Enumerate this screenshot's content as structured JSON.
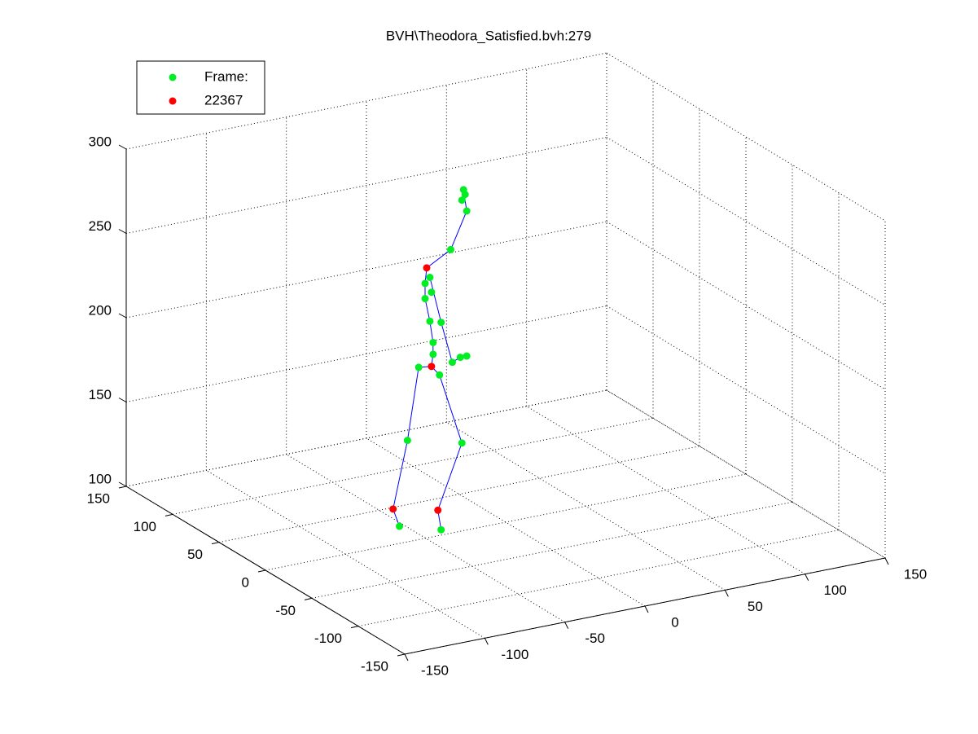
{
  "chart_data": {
    "type": "scatter3d",
    "title": "BVH\\Theodora_Satisfied.bvh:279",
    "xlim": [
      -150,
      150
    ],
    "ylim": [
      -150,
      150
    ],
    "zlim": [
      100,
      300
    ],
    "xticks": [
      -150,
      -100,
      -50,
      0,
      50,
      100,
      150
    ],
    "yticks": [
      -150,
      -100,
      -50,
      0,
      50,
      100,
      150
    ],
    "zticks": [
      100,
      150,
      200,
      250,
      300
    ],
    "grid": true,
    "legend": "upper left",
    "series": [
      {
        "name": "Frame:",
        "color": "#00ee22",
        "mode": "markers",
        "x": [
          -13,
          -12,
          -14,
          -11,
          -21,
          -34,
          -37,
          -33,
          -37,
          -34,
          -27,
          -32,
          -32,
          -41,
          -28,
          -20,
          -15,
          -11,
          -48,
          -14,
          -53,
          -27
        ],
        "y": [
          23,
          23,
          23,
          23,
          23,
          23,
          23,
          23,
          23,
          23,
          23,
          23,
          23,
          23,
          23,
          23,
          23,
          23,
          23,
          23,
          23,
          23
        ],
        "z": [
          292,
          289,
          286,
          279,
          258,
          244,
          241,
          235,
          232,
          218,
          216,
          205,
          198,
          192,
          185,
          191,
          193,
          193,
          150,
          142,
          100,
          93
        ]
      },
      {
        "name": "22367",
        "color": "#ff0000",
        "mode": "markers",
        "x": [
          -36,
          -33,
          -57,
          -29
        ],
        "y": [
          23,
          23,
          23,
          23
        ],
        "z": [
          250,
          191,
          111,
          105
        ]
      },
      {
        "color": "#0000ff",
        "mode": "line",
        "x": [
          -13,
          -11,
          -21,
          -36,
          -37,
          -37,
          -34,
          -32,
          -32,
          -33,
          null,
          -33,
          -41,
          -48,
          -57,
          -53,
          null,
          -33,
          -28,
          -14,
          -29,
          -27,
          null,
          -34,
          -27,
          -20,
          -15
        ],
        "y": [
          23,
          23,
          23,
          23,
          23,
          23,
          23,
          23,
          23,
          23,
          null,
          23,
          23,
          23,
          23,
          23,
          null,
          23,
          23,
          23,
          23,
          23,
          null,
          23,
          23,
          23,
          23
        ],
        "z": [
          292,
          279,
          258,
          250,
          241,
          232,
          218,
          205,
          198,
          191,
          null,
          191,
          192,
          150,
          111,
          100,
          null,
          191,
          185,
          142,
          105,
          93,
          null,
          244,
          216,
          191,
          193
        ]
      }
    ]
  }
}
